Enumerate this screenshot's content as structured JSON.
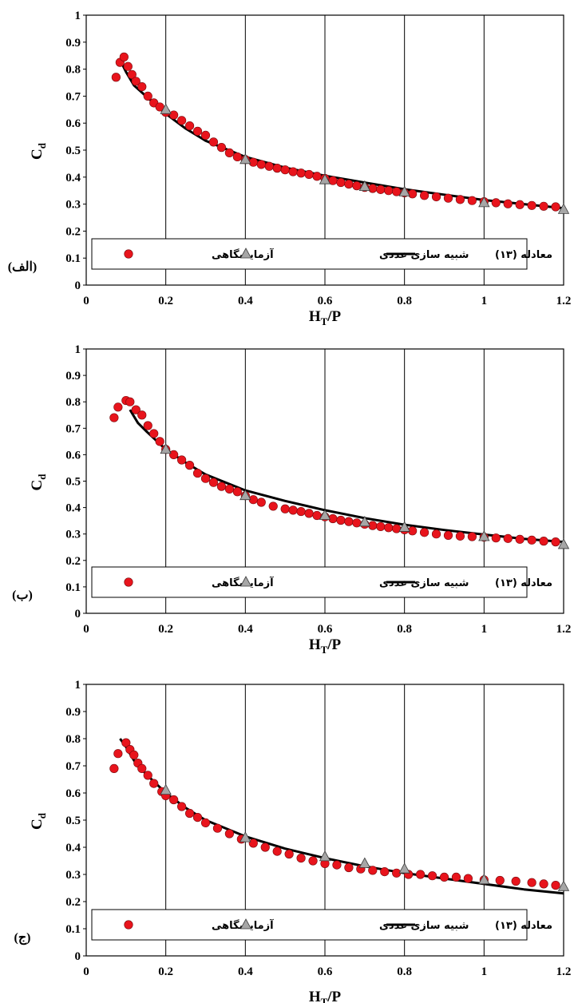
{
  "colors": {
    "experimental": "#e8141c",
    "numerical": "#a6a6a6",
    "equation": "#000000",
    "grid": "#000000"
  },
  "chart_data": [
    {
      "type": "scatter",
      "panel_label": "(الف)",
      "xlabel_main": "H",
      "xlabel_sub": "T",
      "xlabel_tail": "/P",
      "ylabel_main": "C",
      "ylabel_sub": "d",
      "xlim": [
        0,
        1.2
      ],
      "ylim": [
        0,
        1
      ],
      "x_ticks": [
        "0",
        "0.2",
        "0.4",
        "0.6",
        "0.8",
        "1",
        "1.2"
      ],
      "y_ticks": [
        "0",
        "0.1",
        "0.2",
        "0.3",
        "0.4",
        "0.5",
        "0.6",
        "0.7",
        "0.8",
        "0.9",
        "1"
      ],
      "grid": true,
      "legend_position": "bottom",
      "legend": {
        "experimental": "آزمایشگاهی",
        "numerical": "شبیه سازی عددی",
        "equation": "معادله (١٣)"
      },
      "series": [
        {
          "name": "آزمایشگاهی",
          "marker": "circle",
          "x": [
            0.075,
            0.085,
            0.095,
            0.105,
            0.115,
            0.125,
            0.14,
            0.155,
            0.17,
            0.185,
            0.2,
            0.22,
            0.24,
            0.26,
            0.28,
            0.3,
            0.32,
            0.34,
            0.36,
            0.38,
            0.4,
            0.42,
            0.44,
            0.46,
            0.48,
            0.5,
            0.52,
            0.54,
            0.56,
            0.58,
            0.6,
            0.62,
            0.64,
            0.66,
            0.68,
            0.7,
            0.72,
            0.74,
            0.76,
            0.78,
            0.8,
            0.82,
            0.85,
            0.88,
            0.91,
            0.94,
            0.97,
            1.0,
            1.03,
            1.06,
            1.09,
            1.12,
            1.15,
            1.18
          ],
          "y": [
            0.77,
            0.825,
            0.845,
            0.81,
            0.78,
            0.755,
            0.735,
            0.7,
            0.675,
            0.66,
            0.64,
            0.63,
            0.61,
            0.59,
            0.57,
            0.555,
            0.53,
            0.51,
            0.49,
            0.475,
            0.465,
            0.455,
            0.447,
            0.44,
            0.433,
            0.427,
            0.42,
            0.415,
            0.41,
            0.403,
            0.395,
            0.387,
            0.38,
            0.374,
            0.368,
            0.362,
            0.358,
            0.354,
            0.35,
            0.346,
            0.342,
            0.338,
            0.332,
            0.327,
            0.322,
            0.317,
            0.313,
            0.309,
            0.305,
            0.301,
            0.298,
            0.295,
            0.292,
            0.29
          ]
        },
        {
          "name": "شبیه سازی عددی",
          "marker": "triangle",
          "x": [
            0.2,
            0.4,
            0.6,
            0.7,
            0.8,
            1.0,
            1.2
          ],
          "y": [
            0.65,
            0.465,
            0.39,
            0.365,
            0.345,
            0.305,
            0.28
          ]
        },
        {
          "name": "معادله (١٣)",
          "marker": "line",
          "x": [
            0.09,
            0.1,
            0.12,
            0.15,
            0.2,
            0.25,
            0.3,
            0.4,
            0.5,
            0.6,
            0.7,
            0.8,
            0.9,
            1.0,
            1.1,
            1.2
          ],
          "y": [
            0.82,
            0.79,
            0.74,
            0.7,
            0.635,
            0.58,
            0.535,
            0.475,
            0.435,
            0.405,
            0.38,
            0.355,
            0.335,
            0.315,
            0.3,
            0.285
          ]
        }
      ]
    },
    {
      "type": "scatter",
      "panel_label": "(ب)",
      "xlabel_main": "H",
      "xlabel_sub": "T",
      "xlabel_tail": "/P",
      "ylabel_main": "C",
      "ylabel_sub": "d",
      "xlim": [
        0,
        1.2
      ],
      "ylim": [
        0,
        1
      ],
      "x_ticks": [
        "0",
        "0.2",
        "0.4",
        "0.6",
        "0.8",
        "1",
        "1.2"
      ],
      "y_ticks": [
        "0",
        "0.1",
        "0.2",
        "0.3",
        "0.4",
        "0.5",
        "0.6",
        "0.7",
        "0.8",
        "0.9",
        "1"
      ],
      "grid": true,
      "legend_position": "bottom",
      "legend": {
        "experimental": "آزمایشگاهی",
        "numerical": "شبیه سازی عددی",
        "equation": "معادله (١٣)"
      },
      "series": [
        {
          "name": "آزمایشگاهی",
          "marker": "circle",
          "x": [
            0.07,
            0.08,
            0.1,
            0.11,
            0.125,
            0.14,
            0.155,
            0.17,
            0.185,
            0.2,
            0.22,
            0.24,
            0.26,
            0.28,
            0.3,
            0.32,
            0.34,
            0.36,
            0.38,
            0.4,
            0.42,
            0.44,
            0.47,
            0.5,
            0.52,
            0.54,
            0.56,
            0.58,
            0.6,
            0.62,
            0.64,
            0.66,
            0.68,
            0.7,
            0.72,
            0.74,
            0.76,
            0.78,
            0.8,
            0.82,
            0.85,
            0.88,
            0.91,
            0.94,
            0.97,
            1.0,
            1.03,
            1.06,
            1.09,
            1.12,
            1.15,
            1.18
          ],
          "y": [
            0.74,
            0.78,
            0.805,
            0.8,
            0.77,
            0.75,
            0.71,
            0.68,
            0.65,
            0.62,
            0.6,
            0.58,
            0.56,
            0.53,
            0.51,
            0.495,
            0.48,
            0.47,
            0.46,
            0.445,
            0.43,
            0.42,
            0.405,
            0.395,
            0.39,
            0.385,
            0.378,
            0.37,
            0.365,
            0.358,
            0.352,
            0.347,
            0.342,
            0.337,
            0.332,
            0.328,
            0.324,
            0.32,
            0.316,
            0.312,
            0.306,
            0.3,
            0.295,
            0.292,
            0.29,
            0.288,
            0.285,
            0.283,
            0.28,
            0.277,
            0.273,
            0.27
          ]
        },
        {
          "name": "شبیه سازی عددی",
          "marker": "triangle",
          "x": [
            0.2,
            0.4,
            0.6,
            0.7,
            0.8,
            1.0,
            1.2
          ],
          "y": [
            0.62,
            0.445,
            0.37,
            0.345,
            0.325,
            0.29,
            0.26
          ]
        },
        {
          "name": "معادله (١٣)",
          "marker": "line",
          "x": [
            0.11,
            0.13,
            0.15,
            0.2,
            0.25,
            0.3,
            0.4,
            0.5,
            0.6,
            0.7,
            0.8,
            0.9,
            1.0,
            1.1,
            1.2
          ],
          "y": [
            0.77,
            0.72,
            0.69,
            0.62,
            0.57,
            0.525,
            0.465,
            0.425,
            0.39,
            0.36,
            0.335,
            0.315,
            0.298,
            0.282,
            0.27
          ]
        }
      ]
    },
    {
      "type": "scatter",
      "panel_label": "(ج)",
      "xlabel_main": "H",
      "xlabel_sub": "T",
      "xlabel_tail": "/P",
      "ylabel_main": "C",
      "ylabel_sub": "d",
      "xlim": [
        0,
        1.2
      ],
      "ylim": [
        0,
        1
      ],
      "x_ticks": [
        "0",
        "0.2",
        "0.4",
        "0.6",
        "0.8",
        "1",
        "1.2"
      ],
      "y_ticks": [
        "0",
        "0.1",
        "0.2",
        "0.3",
        "0.4",
        "0.5",
        "0.6",
        "0.7",
        "0.8",
        "0.9",
        "1"
      ],
      "grid": true,
      "legend_position": "bottom",
      "legend": {
        "experimental": "آزمایشگاهی",
        "numerical": "شبیه سازی عددی",
        "equation": "معادله (١٣)"
      },
      "series": [
        {
          "name": "آزمایشگاهی",
          "marker": "circle",
          "x": [
            0.07,
            0.08,
            0.1,
            0.11,
            0.12,
            0.13,
            0.14,
            0.155,
            0.17,
            0.19,
            0.2,
            0.22,
            0.24,
            0.26,
            0.28,
            0.3,
            0.33,
            0.36,
            0.39,
            0.42,
            0.45,
            0.48,
            0.51,
            0.54,
            0.57,
            0.6,
            0.63,
            0.66,
            0.69,
            0.72,
            0.75,
            0.78,
            0.81,
            0.84,
            0.87,
            0.9,
            0.93,
            0.96,
            1.0,
            1.04,
            1.08,
            1.12,
            1.15,
            1.18
          ],
          "y": [
            0.69,
            0.745,
            0.785,
            0.76,
            0.74,
            0.71,
            0.69,
            0.665,
            0.635,
            0.605,
            0.59,
            0.575,
            0.55,
            0.525,
            0.51,
            0.49,
            0.47,
            0.45,
            0.43,
            0.415,
            0.4,
            0.385,
            0.375,
            0.36,
            0.35,
            0.34,
            0.335,
            0.325,
            0.32,
            0.315,
            0.31,
            0.305,
            0.3,
            0.3,
            0.295,
            0.29,
            0.29,
            0.285,
            0.28,
            0.278,
            0.275,
            0.27,
            0.265,
            0.26
          ]
        },
        {
          "name": "شبیه سازی عددی",
          "marker": "triangle",
          "x": [
            0.2,
            0.4,
            0.6,
            0.7,
            0.8,
            1.0,
            1.2
          ],
          "y": [
            0.61,
            0.435,
            0.365,
            0.34,
            0.32,
            0.28,
            0.255
          ]
        },
        {
          "name": "معادله (١٣)",
          "marker": "line",
          "x": [
            0.085,
            0.1,
            0.12,
            0.15,
            0.2,
            0.25,
            0.3,
            0.4,
            0.5,
            0.6,
            0.7,
            0.8,
            0.9,
            1.0,
            1.1,
            1.2
          ],
          "y": [
            0.8,
            0.77,
            0.72,
            0.67,
            0.6,
            0.545,
            0.5,
            0.44,
            0.395,
            0.36,
            0.33,
            0.305,
            0.285,
            0.265,
            0.245,
            0.23
          ]
        }
      ]
    }
  ]
}
